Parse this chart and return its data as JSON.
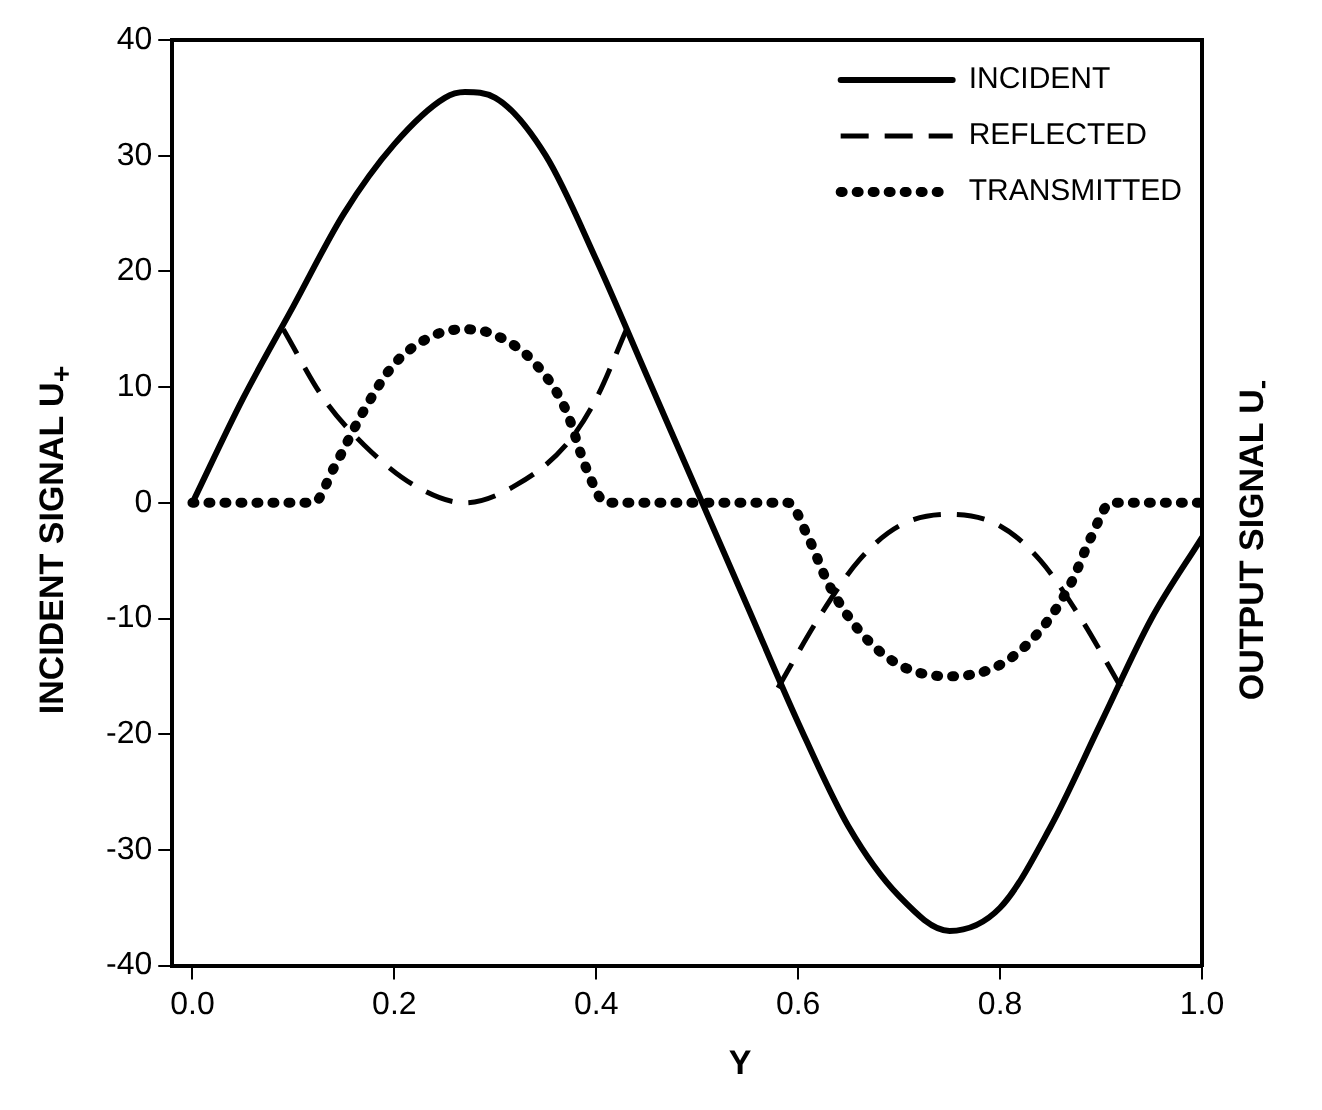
{
  "chart_data": {
    "type": "line",
    "xlabel": "Y",
    "ylabel": "INCIDENT SIGNAL U$_{+}$",
    "y2label": "OUTPUT SIGNAL U$_{-}$",
    "xlim": [
      -0.02,
      1.0
    ],
    "xticks": [
      {
        "value": 0,
        "label": "0.0"
      },
      {
        "value": 0.2,
        "label": "0.2"
      },
      {
        "value": 0.4,
        "label": "0.4"
      },
      {
        "value": 0.6,
        "label": "0.6"
      },
      {
        "value": 0.8,
        "label": "0.8"
      },
      {
        "value": 1,
        "label": "1.0"
      }
    ],
    "ylim": [
      -40,
      40
    ],
    "yticks": [
      -40,
      -30,
      -20,
      -10,
      0,
      10,
      20,
      30,
      40
    ],
    "grid": false,
    "legend": "top right",
    "marker": "none",
    "series": [
      {
        "name": "INCIDENT",
        "color": "#000000",
        "line_style": "solid",
        "x": [
          0,
          0.05,
          0.1,
          0.15,
          0.2,
          0.25,
          0.27,
          0.3,
          0.35,
          0.4,
          0.45,
          0.5,
          0.55,
          0.6,
          0.65,
          0.7,
          0.75,
          0.8,
          0.85,
          0.9,
          0.95,
          1.0
        ],
        "values": [
          0,
          9,
          17,
          25,
          31,
          35,
          35.5,
          35,
          30,
          21,
          11,
          1,
          -9,
          -19,
          -28,
          -34,
          -37,
          -35,
          -28,
          -19,
          -10,
          -3
        ]
      },
      {
        "name": "REFLECTED",
        "color": "#000000",
        "line_style": "dashed",
        "x": [
          0.09,
          0.13,
          0.17,
          0.22,
          0.27,
          0.32,
          0.37,
          0.4,
          0.43,
          0.5,
          0.58,
          0.62,
          0.66,
          0.7,
          0.75,
          0.8,
          0.84,
          0.88,
          0.92
        ],
        "values": [
          15,
          9,
          5,
          1.5,
          0,
          1.5,
          5,
          9,
          15,
          null,
          -16,
          -10,
          -5,
          -2,
          -1,
          -2,
          -5,
          -10,
          -16
        ]
      },
      {
        "name": "TRANSMITTED",
        "color": "#000000",
        "line_style": "dotted",
        "x": [
          0,
          0.12,
          0.14,
          0.17,
          0.2,
          0.24,
          0.27,
          0.3,
          0.34,
          0.37,
          0.39,
          0.41,
          0.59,
          0.61,
          0.63,
          0.66,
          0.7,
          0.75,
          0.8,
          0.84,
          0.87,
          0.89,
          0.91,
          1.0
        ],
        "values": [
          0,
          0,
          3,
          8,
          12,
          14.5,
          15,
          14.5,
          12,
          8,
          3,
          0,
          0,
          -3,
          -7,
          -11,
          -14,
          -15,
          -14,
          -11,
          -7,
          -3,
          0,
          0
        ]
      }
    ]
  }
}
